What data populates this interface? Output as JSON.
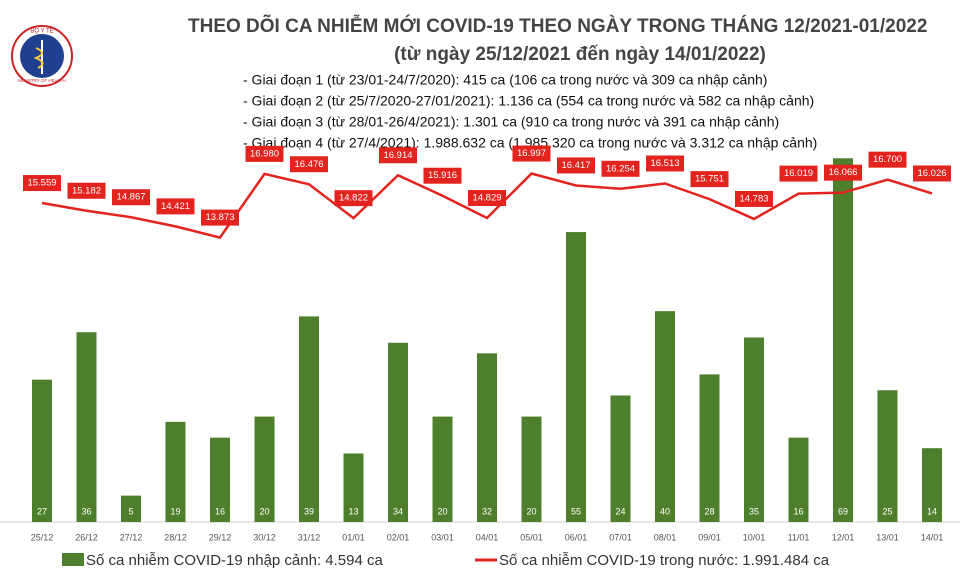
{
  "chart_data": {
    "type": "bar",
    "logo": {
      "top": "BỘ Y TẾ",
      "bottom": "MINISTRY OF HEALTH"
    },
    "title": "THEO DÕI CA NHIỄM MỚI COVID-19 THEO NGÀY TRONG THÁNG 12/2021-01/2022",
    "subtitle": "(từ ngày 25/12/2021 đến ngày 14/01/2022)",
    "notes": [
      "- Giai đoạn 1 (từ 23/01-24/7/2020): 415 ca (106 ca trong nước và 309 ca nhập cảnh)",
      "- Giai đoạn 2 (từ 25/7/2020-27/01/2021): 1.136 ca (554 ca trong nước và 582 ca nhập cảnh)",
      "- Giai đoạn 3 (từ 28/01-26/4/2021): 1.301 ca (910 ca trong nước và 391 ca nhập cảnh)",
      "- Giai đoạn 4 (từ 27/4/2021): 1.988.632 ca (1.985.320 ca trong nước và 3.312 ca nhập cảnh)"
    ],
    "categories": [
      "25/12",
      "26/12",
      "27/12",
      "28/12",
      "29/12",
      "30/12",
      "31/12",
      "01/01",
      "02/01",
      "03/01",
      "04/01",
      "05/01",
      "06/01",
      "07/01",
      "08/01",
      "09/01",
      "10/01",
      "11/01",
      "12/01",
      "13/01",
      "14/01"
    ],
    "series": [
      {
        "name": "Số ca nhiễm COVID-19 nhập cảnh: 4.594 ca",
        "type": "bar",
        "color": "#4e7f2c",
        "values": [
          27,
          36,
          5,
          19,
          16,
          20,
          39,
          13,
          34,
          20,
          32,
          20,
          55,
          24,
          40,
          28,
          35,
          16,
          69,
          25,
          14
        ]
      },
      {
        "name": "Số ca nhiễm COVID-19 trong nước: 1.991.484 ca",
        "type": "line",
        "axis": "y2",
        "color": "#e3231e",
        "values": [
          15559,
          15182,
          14867,
          14421,
          13873,
          16980,
          16476,
          14822,
          16914,
          15916,
          14829,
          16997,
          16417,
          16254,
          16513,
          15751,
          14783,
          16019,
          16066,
          16700,
          16026
        ],
        "value_labels": [
          "15.559",
          "15.182",
          "14.867",
          "14.421",
          "13.873",
          "16.980",
          "16.476",
          "14.822",
          "16.914",
          "15.916",
          "14.829",
          "16.997",
          "16.417",
          "16.254",
          "16.513",
          "15.751",
          "14.783",
          "16.019",
          "16.066",
          "16.700",
          "16.026"
        ]
      }
    ],
    "ylim": [
      0,
      70
    ],
    "y2lim": [
      0,
      18000
    ]
  }
}
